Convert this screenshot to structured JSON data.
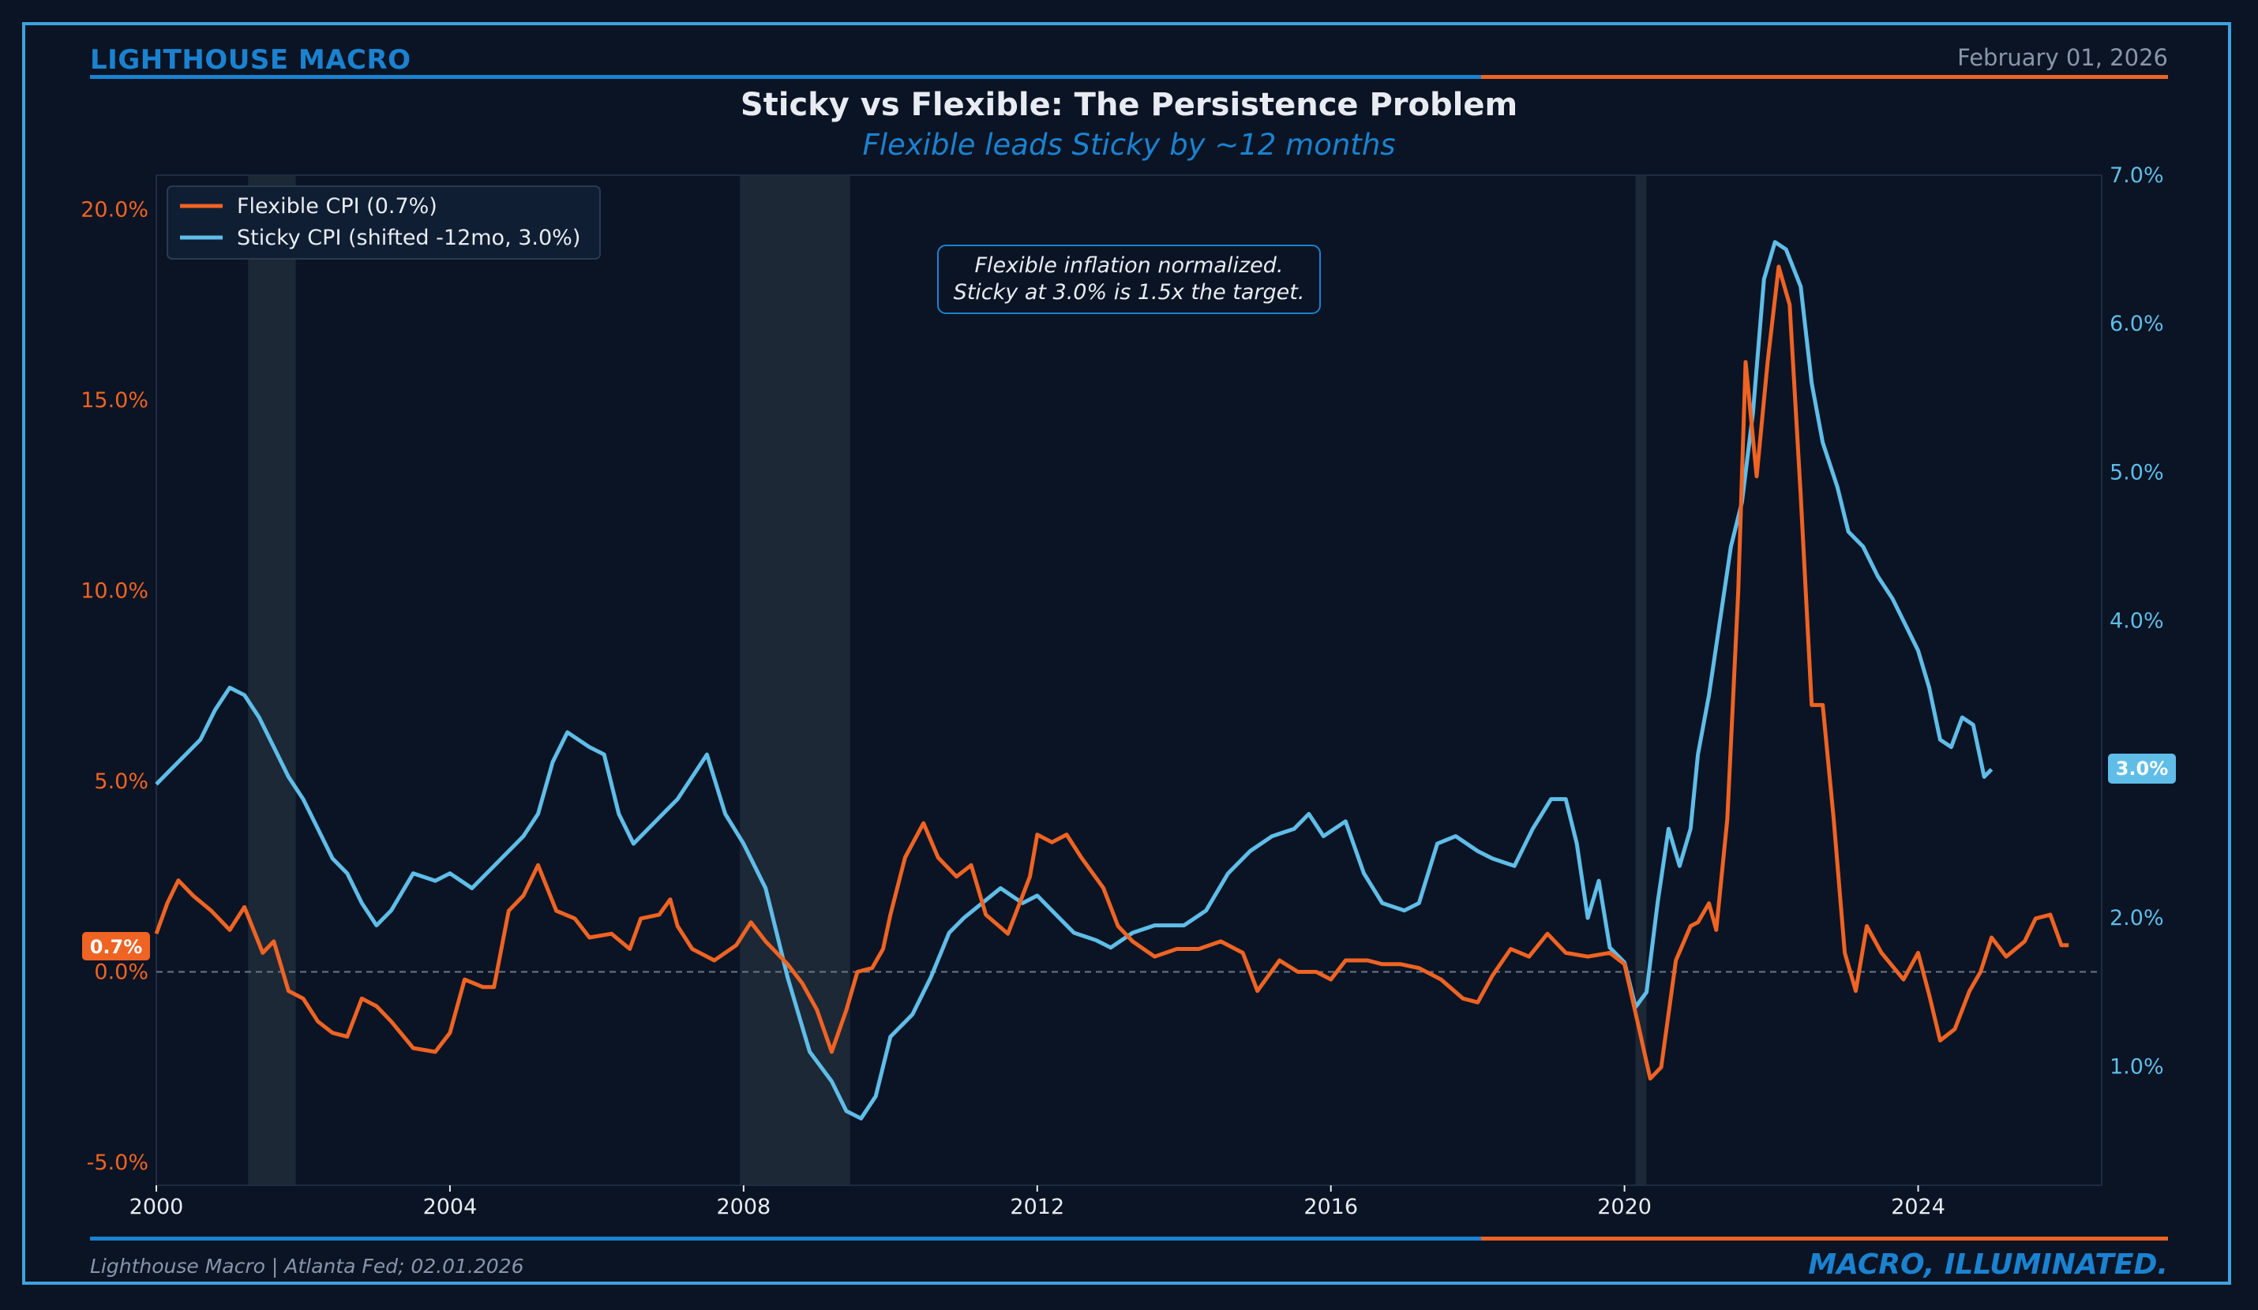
{
  "header": {
    "brand": "LIGHTHOUSE MACRO",
    "date": "February 01, 2026",
    "title": "Sticky vs Flexible: The Persistence Problem",
    "subtitle": "Flexible leads Sticky by ~12 months"
  },
  "footer": {
    "source": "Lighthouse Macro | Atlanta Fed; 02.01.2026",
    "tagline": "MACRO, ILLUMINATED."
  },
  "colors": {
    "flexible": "#ef6323",
    "sticky": "#5fbde8",
    "brand": "#1a82d0",
    "recession": "#1c2836"
  },
  "chart_data": {
    "type": "line",
    "title": "Sticky vs Flexible: The Persistence Problem",
    "subtitle": "Flexible leads Sticky by ~12 months",
    "x_ticks": [
      "2000",
      "2004",
      "2008",
      "2012",
      "2016",
      "2020",
      "2024"
    ],
    "xlim": [
      2000.0,
      2026.5
    ],
    "y_left": {
      "ylim": [
        -5.6,
        20.9
      ],
      "ticks": [
        "-5.0%",
        "0.0%",
        "5.0%",
        "10.0%",
        "15.0%",
        "20.0%"
      ],
      "tick_values": [
        -5,
        0,
        5,
        10,
        15,
        20
      ]
    },
    "y_right": {
      "ylim": [
        0.2,
        7.0
      ],
      "ticks": [
        "1.0%",
        "2.0%",
        "3.0%",
        "4.0%",
        "5.0%",
        "6.0%",
        "7.0%"
      ],
      "tick_values": [
        1,
        2,
        3,
        4,
        5,
        6,
        7
      ]
    },
    "zero_line": 0,
    "recessions": [
      [
        2001.25,
        2001.9
      ],
      [
        2007.95,
        2009.45
      ],
      [
        2020.15,
        2020.3
      ]
    ],
    "legend": {
      "position": "top-left",
      "entries": [
        "Flexible CPI (0.7%)",
        "Sticky CPI (shifted -12mo, 3.0%)"
      ]
    },
    "annotation": {
      "line1": "Flexible inflation normalized.",
      "line2": "Sticky at 3.0% is 1.5x the target."
    },
    "badges": {
      "flexible_last": "0.7%",
      "sticky_last": "3.0%"
    },
    "series": [
      {
        "name": "Flexible CPI (0.7%)",
        "axis": "left",
        "color": "#ef6323",
        "points": [
          [
            2000.0,
            1.0
          ],
          [
            2000.15,
            1.8
          ],
          [
            2000.3,
            2.4
          ],
          [
            2000.5,
            2.0
          ],
          [
            2000.75,
            1.6
          ],
          [
            2001.0,
            1.1
          ],
          [
            2001.2,
            1.7
          ],
          [
            2001.45,
            0.5
          ],
          [
            2001.6,
            0.8
          ],
          [
            2001.8,
            -0.5
          ],
          [
            2002.0,
            -0.7
          ],
          [
            2002.2,
            -1.3
          ],
          [
            2002.4,
            -1.6
          ],
          [
            2002.6,
            -1.7
          ],
          [
            2002.8,
            -0.7
          ],
          [
            2003.0,
            -0.9
          ],
          [
            2003.2,
            -1.3
          ],
          [
            2003.5,
            -2.0
          ],
          [
            2003.8,
            -2.1
          ],
          [
            2004.0,
            -1.6
          ],
          [
            2004.2,
            -0.2
          ],
          [
            2004.45,
            -0.4
          ],
          [
            2004.6,
            -0.4
          ],
          [
            2004.8,
            1.6
          ],
          [
            2005.0,
            2.0
          ],
          [
            2005.2,
            2.8
          ],
          [
            2005.45,
            1.6
          ],
          [
            2005.7,
            1.4
          ],
          [
            2005.9,
            0.9
          ],
          [
            2006.2,
            1.0
          ],
          [
            2006.45,
            0.6
          ],
          [
            2006.6,
            1.4
          ],
          [
            2006.85,
            1.5
          ],
          [
            2007.0,
            1.9
          ],
          [
            2007.1,
            1.2
          ],
          [
            2007.3,
            0.6
          ],
          [
            2007.6,
            0.3
          ],
          [
            2007.9,
            0.7
          ],
          [
            2008.1,
            1.3
          ],
          [
            2008.3,
            0.8
          ],
          [
            2008.6,
            0.2
          ],
          [
            2008.8,
            -0.3
          ],
          [
            2009.0,
            -1.0
          ],
          [
            2009.2,
            -2.1
          ],
          [
            2009.4,
            -1.0
          ],
          [
            2009.55,
            0.0
          ],
          [
            2009.75,
            0.1
          ],
          [
            2009.9,
            0.6
          ],
          [
            2010.0,
            1.5
          ],
          [
            2010.2,
            3.0
          ],
          [
            2010.45,
            3.9
          ],
          [
            2010.65,
            3.0
          ],
          [
            2010.9,
            2.5
          ],
          [
            2011.1,
            2.8
          ],
          [
            2011.3,
            1.5
          ],
          [
            2011.6,
            1.0
          ],
          [
            2011.9,
            2.5
          ],
          [
            2012.0,
            3.6
          ],
          [
            2012.2,
            3.4
          ],
          [
            2012.4,
            3.6
          ],
          [
            2012.6,
            3.0
          ],
          [
            2012.9,
            2.2
          ],
          [
            2013.1,
            1.2
          ],
          [
            2013.3,
            0.8
          ],
          [
            2013.6,
            0.4
          ],
          [
            2013.9,
            0.6
          ],
          [
            2014.2,
            0.6
          ],
          [
            2014.5,
            0.8
          ],
          [
            2014.8,
            0.5
          ],
          [
            2015.0,
            -0.5
          ],
          [
            2015.3,
            0.3
          ],
          [
            2015.55,
            0.0
          ],
          [
            2015.8,
            0.0
          ],
          [
            2016.0,
            -0.2
          ],
          [
            2016.2,
            0.3
          ],
          [
            2016.5,
            0.3
          ],
          [
            2016.7,
            0.2
          ],
          [
            2016.95,
            0.2
          ],
          [
            2017.2,
            0.1
          ],
          [
            2017.5,
            -0.2
          ],
          [
            2017.8,
            -0.7
          ],
          [
            2018.0,
            -0.8
          ],
          [
            2018.2,
            -0.1
          ],
          [
            2018.45,
            0.6
          ],
          [
            2018.7,
            0.4
          ],
          [
            2018.95,
            1.0
          ],
          [
            2019.2,
            0.5
          ],
          [
            2019.5,
            0.4
          ],
          [
            2019.8,
            0.5
          ],
          [
            2020.0,
            0.2
          ],
          [
            2020.2,
            -1.5
          ],
          [
            2020.35,
            -2.8
          ],
          [
            2020.5,
            -2.5
          ],
          [
            2020.7,
            0.3
          ],
          [
            2020.9,
            1.2
          ],
          [
            2021.0,
            1.3
          ],
          [
            2021.15,
            1.8
          ],
          [
            2021.25,
            1.1
          ],
          [
            2021.4,
            4.0
          ],
          [
            2021.55,
            10.0
          ],
          [
            2021.65,
            16.0
          ],
          [
            2021.8,
            13.0
          ],
          [
            2021.95,
            16.0
          ],
          [
            2022.1,
            18.5
          ],
          [
            2022.25,
            17.5
          ],
          [
            2022.4,
            12.5
          ],
          [
            2022.55,
            7.0
          ],
          [
            2022.7,
            7.0
          ],
          [
            2022.85,
            4.0
          ],
          [
            2023.0,
            0.5
          ],
          [
            2023.15,
            -0.5
          ],
          [
            2023.3,
            1.2
          ],
          [
            2023.5,
            0.5
          ],
          [
            2023.8,
            -0.2
          ],
          [
            2024.0,
            0.5
          ],
          [
            2024.15,
            -0.6
          ],
          [
            2024.3,
            -1.8
          ],
          [
            2024.5,
            -1.5
          ],
          [
            2024.7,
            -0.5
          ],
          [
            2024.85,
            0.0
          ],
          [
            2025.0,
            0.9
          ],
          [
            2025.2,
            0.4
          ],
          [
            2025.45,
            0.8
          ],
          [
            2025.6,
            1.4
          ],
          [
            2025.8,
            1.5
          ],
          [
            2025.95,
            0.7
          ],
          [
            2026.05,
            0.7
          ]
        ]
      },
      {
        "name": "Sticky CPI (shifted -12mo, 3.0%)",
        "axis": "right",
        "color": "#5fbde8",
        "points": [
          [
            2000.0,
            2.9
          ],
          [
            2000.2,
            3.0
          ],
          [
            2000.4,
            3.1
          ],
          [
            2000.6,
            3.2
          ],
          [
            2000.8,
            3.4
          ],
          [
            2001.0,
            3.55
          ],
          [
            2001.2,
            3.5
          ],
          [
            2001.4,
            3.35
          ],
          [
            2001.6,
            3.15
          ],
          [
            2001.8,
            2.95
          ],
          [
            2002.0,
            2.8
          ],
          [
            2002.2,
            2.6
          ],
          [
            2002.4,
            2.4
          ],
          [
            2002.6,
            2.3
          ],
          [
            2002.8,
            2.1
          ],
          [
            2003.0,
            1.95
          ],
          [
            2003.2,
            2.05
          ],
          [
            2003.5,
            2.3
          ],
          [
            2003.8,
            2.25
          ],
          [
            2004.0,
            2.3
          ],
          [
            2004.3,
            2.2
          ],
          [
            2004.5,
            2.3
          ],
          [
            2004.8,
            2.45
          ],
          [
            2005.0,
            2.55
          ],
          [
            2005.2,
            2.7
          ],
          [
            2005.4,
            3.05
          ],
          [
            2005.6,
            3.25
          ],
          [
            2005.75,
            3.2
          ],
          [
            2005.9,
            3.15
          ],
          [
            2006.1,
            3.1
          ],
          [
            2006.3,
            2.7
          ],
          [
            2006.5,
            2.5
          ],
          [
            2006.7,
            2.6
          ],
          [
            2006.9,
            2.7
          ],
          [
            2007.1,
            2.8
          ],
          [
            2007.3,
            2.95
          ],
          [
            2007.5,
            3.1
          ],
          [
            2007.75,
            2.7
          ],
          [
            2008.0,
            2.5
          ],
          [
            2008.3,
            2.2
          ],
          [
            2008.6,
            1.6
          ],
          [
            2008.9,
            1.1
          ],
          [
            2009.2,
            0.9
          ],
          [
            2009.4,
            0.7
          ],
          [
            2009.6,
            0.65
          ],
          [
            2009.8,
            0.8
          ],
          [
            2010.0,
            1.2
          ],
          [
            2010.3,
            1.35
          ],
          [
            2010.55,
            1.6
          ],
          [
            2010.8,
            1.9
          ],
          [
            2011.0,
            2.0
          ],
          [
            2011.25,
            2.1
          ],
          [
            2011.5,
            2.2
          ],
          [
            2011.8,
            2.1
          ],
          [
            2012.0,
            2.15
          ],
          [
            2012.3,
            2.0
          ],
          [
            2012.5,
            1.9
          ],
          [
            2012.8,
            1.85
          ],
          [
            2013.0,
            1.8
          ],
          [
            2013.3,
            1.9
          ],
          [
            2013.6,
            1.95
          ],
          [
            2014.0,
            1.95
          ],
          [
            2014.3,
            2.05
          ],
          [
            2014.6,
            2.3
          ],
          [
            2014.9,
            2.45
          ],
          [
            2015.2,
            2.55
          ],
          [
            2015.5,
            2.6
          ],
          [
            2015.7,
            2.7
          ],
          [
            2015.9,
            2.55
          ],
          [
            2016.2,
            2.65
          ],
          [
            2016.45,
            2.3
          ],
          [
            2016.7,
            2.1
          ],
          [
            2017.0,
            2.05
          ],
          [
            2017.2,
            2.1
          ],
          [
            2017.45,
            2.5
          ],
          [
            2017.7,
            2.55
          ],
          [
            2018.0,
            2.45
          ],
          [
            2018.2,
            2.4
          ],
          [
            2018.5,
            2.35
          ],
          [
            2018.75,
            2.6
          ],
          [
            2019.0,
            2.8
          ],
          [
            2019.2,
            2.8
          ],
          [
            2019.35,
            2.5
          ],
          [
            2019.5,
            2.0
          ],
          [
            2019.65,
            2.25
          ],
          [
            2019.8,
            1.8
          ],
          [
            2020.0,
            1.7
          ],
          [
            2020.15,
            1.4
          ],
          [
            2020.3,
            1.5
          ],
          [
            2020.45,
            2.1
          ],
          [
            2020.6,
            2.6
          ],
          [
            2020.75,
            2.35
          ],
          [
            2020.9,
            2.6
          ],
          [
            2021.0,
            3.1
          ],
          [
            2021.15,
            3.5
          ],
          [
            2021.3,
            4.0
          ],
          [
            2021.45,
            4.5
          ],
          [
            2021.6,
            4.8
          ],
          [
            2021.75,
            5.4
          ],
          [
            2021.9,
            6.3
          ],
          [
            2022.05,
            6.55
          ],
          [
            2022.2,
            6.5
          ],
          [
            2022.4,
            6.25
          ],
          [
            2022.55,
            5.6
          ],
          [
            2022.7,
            5.2
          ],
          [
            2022.9,
            4.9
          ],
          [
            2023.05,
            4.6
          ],
          [
            2023.25,
            4.5
          ],
          [
            2023.45,
            4.3
          ],
          [
            2023.65,
            4.15
          ],
          [
            2023.85,
            3.95
          ],
          [
            2024.0,
            3.8
          ],
          [
            2024.15,
            3.55
          ],
          [
            2024.3,
            3.2
          ],
          [
            2024.45,
            3.15
          ],
          [
            2024.6,
            3.35
          ],
          [
            2024.75,
            3.3
          ],
          [
            2024.9,
            2.95
          ],
          [
            2025.0,
            3.0
          ]
        ]
      }
    ]
  }
}
